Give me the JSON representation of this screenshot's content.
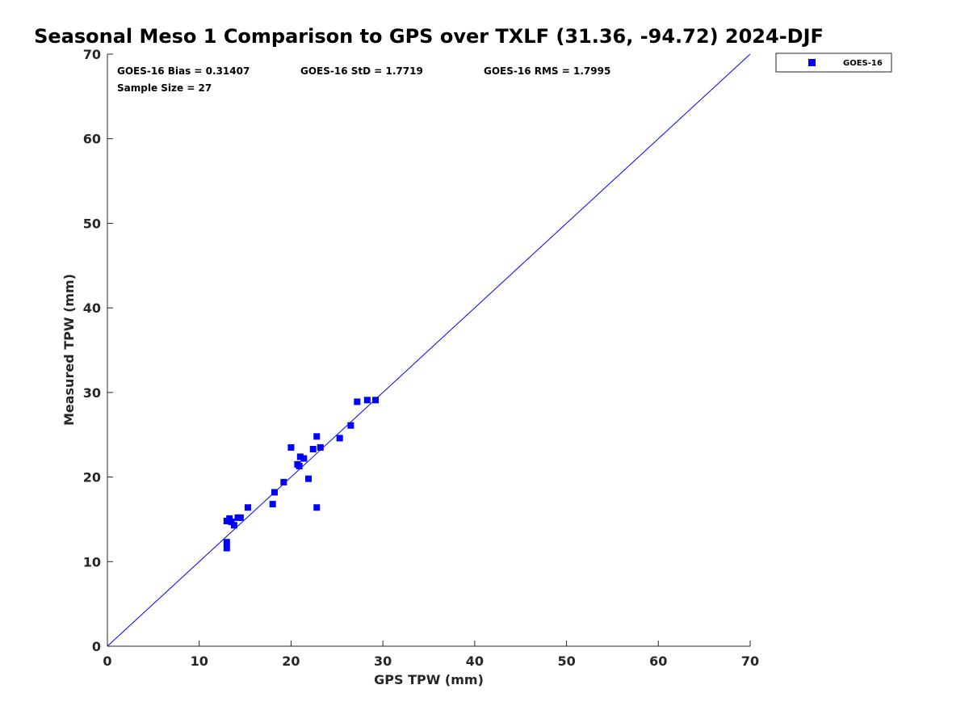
{
  "chart_data": {
    "type": "scatter",
    "title": "Seasonal Meso 1 Comparison to GPS over TXLF (31.36, -94.72) 2024-DJF",
    "xlabel": "GPS TPW (mm)",
    "ylabel": "Measured TPW (mm)",
    "xlim": [
      0,
      70
    ],
    "ylim": [
      0,
      70
    ],
    "xticks": [
      "0",
      "10",
      "20",
      "30",
      "40",
      "50",
      "60",
      "70"
    ],
    "yticks": [
      "0",
      "10",
      "20",
      "30",
      "40",
      "50",
      "60",
      "70"
    ],
    "grid": false,
    "legend_position": "outside-top-right",
    "reference_line": {
      "x": [
        0,
        70
      ],
      "y": [
        0,
        70
      ],
      "color": "#0000ff"
    },
    "stats": {
      "bias": "GOES-16 Bias = 0.31407",
      "std": "GOES-16 StD = 1.7719",
      "rms": "GOES-16 RMS = 1.7995",
      "sample": "Sample Size = 27"
    },
    "series": [
      {
        "name": "GOES-16",
        "color": "#0000ff",
        "marker": "square",
        "points": [
          [
            13.0,
            11.6
          ],
          [
            13.0,
            12.3
          ],
          [
            13.0,
            14.8
          ],
          [
            13.3,
            15.1
          ],
          [
            13.5,
            14.7
          ],
          [
            13.8,
            14.3
          ],
          [
            14.2,
            15.2
          ],
          [
            14.5,
            15.2
          ],
          [
            15.3,
            16.4
          ],
          [
            18.0,
            16.8
          ],
          [
            18.2,
            18.2
          ],
          [
            19.2,
            19.4
          ],
          [
            20.0,
            23.5
          ],
          [
            20.7,
            21.5
          ],
          [
            20.9,
            21.3
          ],
          [
            21.0,
            22.4
          ],
          [
            21.4,
            22.2
          ],
          [
            21.9,
            19.8
          ],
          [
            22.4,
            23.3
          ],
          [
            22.8,
            16.4
          ],
          [
            22.8,
            24.8
          ],
          [
            23.2,
            23.5
          ],
          [
            25.3,
            24.6
          ],
          [
            26.5,
            26.1
          ],
          [
            27.2,
            28.9
          ],
          [
            28.3,
            29.1
          ],
          [
            29.2,
            29.1
          ]
        ]
      }
    ]
  }
}
